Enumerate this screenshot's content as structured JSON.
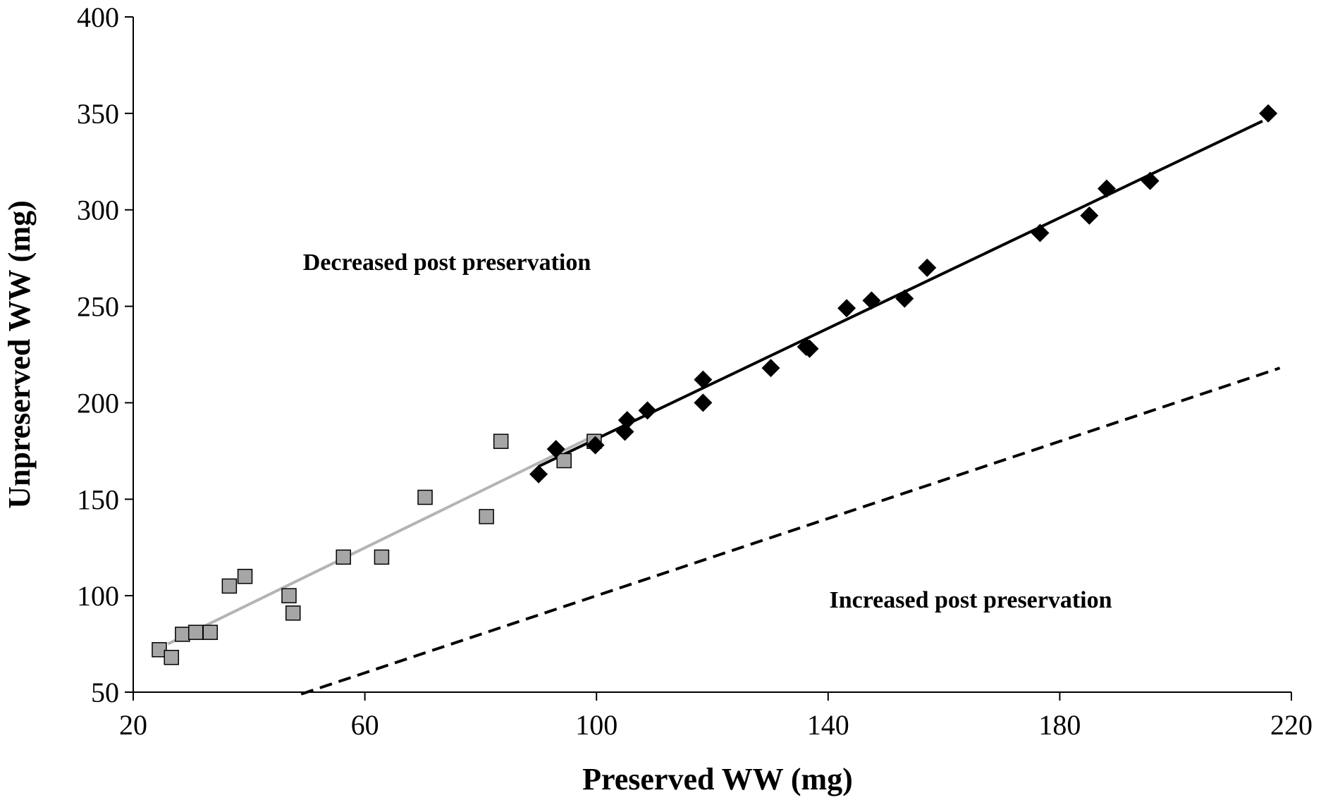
{
  "chart_data": {
    "type": "scatter",
    "title": "",
    "xlabel": "Preserved WW (mg)",
    "ylabel": "Unpreserved WW (mg)",
    "xlim": [
      20,
      220
    ],
    "ylim": [
      50,
      400
    ],
    "xticks": [
      20,
      60,
      100,
      140,
      180,
      220
    ],
    "yticks": [
      50,
      100,
      150,
      200,
      250,
      300,
      350,
      400
    ],
    "grid": false,
    "legend": "none",
    "annotations": [
      {
        "text": "Decreased post preservation",
        "x": 76,
        "y": 312
      },
      {
        "text": "Increased post preservation",
        "x": 169,
        "y": 100
      }
    ],
    "series": [
      {
        "marker": "square",
        "color": "#a6a6a6",
        "points": [
          [
            24.5,
            72
          ],
          [
            26.6,
            68
          ],
          [
            28.5,
            80
          ],
          [
            30.8,
            81
          ],
          [
            33.3,
            81
          ],
          [
            36.6,
            105
          ],
          [
            39.3,
            110
          ],
          [
            46.9,
            100
          ],
          [
            47.6,
            91
          ],
          [
            56.3,
            120
          ],
          [
            62.9,
            120
          ],
          [
            70.4,
            151
          ],
          [
            81.0,
            141
          ],
          [
            83.5,
            180
          ],
          [
            94.4,
            170
          ],
          [
            99.6,
            180
          ]
        ]
      },
      {
        "marker": "diamond",
        "color": "#000000",
        "points": [
          [
            90.0,
            163
          ],
          [
            93.0,
            176
          ],
          [
            99.8,
            178
          ],
          [
            104.9,
            185
          ],
          [
            105.3,
            191
          ],
          [
            108.8,
            196
          ],
          [
            118.4,
            200
          ],
          [
            118.4,
            212
          ],
          [
            130.1,
            218
          ],
          [
            136.2,
            229
          ],
          [
            136.8,
            228
          ],
          [
            143.2,
            249
          ],
          [
            147.5,
            253
          ],
          [
            153.2,
            254
          ],
          [
            157.1,
            270
          ],
          [
            176.6,
            288
          ],
          [
            185.1,
            297
          ],
          [
            188.1,
            311
          ],
          [
            195.6,
            315
          ],
          [
            216.0,
            350
          ]
        ]
      }
    ],
    "lines": [
      {
        "style": "solid",
        "color": "#b4b4b4",
        "from": [
          26,
          75
        ],
        "to": [
          99,
          182
        ]
      },
      {
        "style": "solid",
        "color": "#000000",
        "from": [
          90,
          167
        ],
        "to": [
          215,
          346
        ]
      },
      {
        "style": "dashed",
        "color": "#000000",
        "from": [
          49,
          49
        ],
        "to": [
          218,
          218
        ]
      }
    ]
  }
}
